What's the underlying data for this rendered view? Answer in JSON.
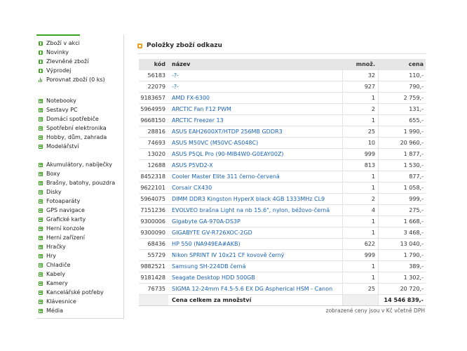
{
  "sidebar": {
    "top_items": [
      {
        "label": "Zboží v akci",
        "icon": "square-arrow-icon"
      },
      {
        "label": "Novinky",
        "icon": "square-arrow-icon"
      },
      {
        "label": "Zlevněné zboží",
        "icon": "square-arrow-icon"
      },
      {
        "label": "Výprodej",
        "icon": "square-arrow-icon"
      },
      {
        "label": "Porovnat zboží (0 ks)",
        "icon": "bar-chart-icon"
      }
    ],
    "group1": [
      "Notebooky",
      "Sestavy PC",
      "Domácí spotřebiče",
      "Spotřební elektronika",
      "Hobby, dům, zahrada",
      "Modelářství"
    ],
    "group2": [
      "Akumulátory, nabíječky",
      "Boxy",
      "Brašny, batohy, pouzdra",
      "Disky",
      "Fotoaparáty",
      "GPS navigace",
      "Grafické karty",
      "Herní konzole",
      "Herní zařízení",
      "Hračky",
      "Hry",
      "Chladiče",
      "Kabely",
      "Kamery",
      "Kancelářské potřeby",
      "Klávesnice",
      "Média"
    ]
  },
  "main": {
    "title": "Položky zboží odkazu",
    "columns": {
      "kod": "kód",
      "nazev": "název",
      "mnoz": "množ.",
      "cena": "cena"
    },
    "rows": [
      {
        "kod": "56183",
        "nazev": "-?-",
        "mnoz": "32",
        "cena": "110,-"
      },
      {
        "kod": "22079",
        "nazev": "-?-",
        "mnoz": "927",
        "cena": "790,-"
      },
      {
        "kod": "9183657",
        "nazev": "AMD FX-6300",
        "mnoz": "1",
        "cena": "2 759,-"
      },
      {
        "kod": "5964959",
        "nazev": "ARCTIC Fan F12 PWM",
        "mnoz": "2",
        "cena": "131,-"
      },
      {
        "kod": "9668150",
        "nazev": "ARCTIC Freezer 13",
        "mnoz": "1",
        "cena": "655,-"
      },
      {
        "kod": "28816",
        "nazev": "ASUS EAH2600XT/HTDP 256MB GDDR3",
        "mnoz": "25",
        "cena": "1 990,-"
      },
      {
        "kod": "74693",
        "nazev": "ASUS M50VC (M50VC-AS048C)",
        "mnoz": "10",
        "cena": "20 960,-"
      },
      {
        "kod": "13020",
        "nazev": "ASUS P5QL Pro (90-MIB4W0-G0EAY00Z)",
        "mnoz": "999",
        "cena": "1 877,-"
      },
      {
        "kod": "12688",
        "nazev": "ASUS P5VD2-X",
        "mnoz": "813",
        "cena": "1 530,-"
      },
      {
        "kod": "8452318",
        "nazev": "Cooler Master Elite 311 černo-červená",
        "mnoz": "1",
        "cena": "877,-"
      },
      {
        "kod": "9622101",
        "nazev": "Corsair CX430",
        "mnoz": "1",
        "cena": "1 058,-"
      },
      {
        "kod": "5964075",
        "nazev": "DIMM DDR3 Kingston HyperX black 4GB 1333MHz CL9",
        "mnoz": "2",
        "cena": "999,-"
      },
      {
        "kod": "7151236",
        "nazev": "EVOLVEO brašna Light na nb 15.6\", nylon, béžovo-černá",
        "mnoz": "4",
        "cena": "275,-"
      },
      {
        "kod": "9300006",
        "nazev": "Gigabyte GA-970A-DS3P",
        "mnoz": "1",
        "cena": "1 668,-"
      },
      {
        "kod": "9300090",
        "nazev": "GIGABYTE GV-R726XOC-2GD",
        "mnoz": "1",
        "cena": "3 468,-"
      },
      {
        "kod": "68436",
        "nazev": "HP 550 (NA949EA#AKB)",
        "mnoz": "622",
        "cena": "13 040,-"
      },
      {
        "kod": "55729",
        "nazev": "Nikon SPRINT IV 10x21 CF kovově černý",
        "mnoz": "999",
        "cena": "1 790,-"
      },
      {
        "kod": "9882521",
        "nazev": "Samsung SH-224DB černá",
        "mnoz": "1",
        "cena": "389,-"
      },
      {
        "kod": "9181428",
        "nazev": "Seagate Desktop HDD 500GB",
        "mnoz": "1",
        "cena": "1 302,-"
      },
      {
        "kod": "76735",
        "nazev": "SIGMA 12-24mm F4.5-5.6 EX DG Aspherical HSM - Canon",
        "mnoz": "25",
        "cena": "20 720,-"
      }
    ],
    "total_label": "Cena celkem za množství",
    "total_value": "14 546 839,-",
    "note": "zobrazené ceny jsou v Kč včetně DPH"
  }
}
